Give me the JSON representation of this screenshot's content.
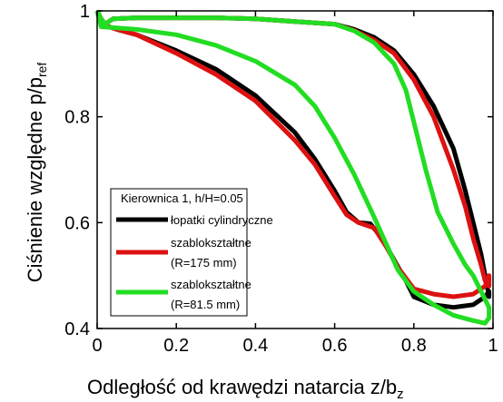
{
  "chart_data": {
    "type": "line",
    "xlabel": "Odległość od krawędzi natarcia z/b",
    "xlabel_sub": "z",
    "ylabel": "Ciśnienie względne p/p",
    "ylabel_sub": "ref",
    "xlim": [
      0,
      1
    ],
    "ylim": [
      0.4,
      1
    ],
    "xticks": [
      0,
      0.2,
      0.4,
      0.6,
      0.8,
      1
    ],
    "xtick_labels": [
      "0",
      "0.2",
      "0.4",
      "0.6",
      "0.8",
      "1"
    ],
    "yticks": [
      0.4,
      0.6,
      0.8,
      1
    ],
    "ytick_labels": [
      "0.4",
      "0.6",
      "0.8",
      "1"
    ],
    "grid": false,
    "legend": {
      "title": "Kierownica 1, h/H=0.05",
      "placement": "center-left",
      "entries": [
        {
          "lines": [
            "łopatki cylindryczne"
          ],
          "color": "#000000"
        },
        {
          "lines": [
            "szablokształtne",
            "(R=175 mm)"
          ],
          "color": "#dd1111"
        },
        {
          "lines": [
            "szablokształtne",
            "(R=81.5 mm)"
          ],
          "color": "#22dd22"
        }
      ]
    },
    "series": [
      {
        "color": "#000000",
        "upper": [
          [
            0,
            1.0
          ],
          [
            0.01,
            0.985
          ],
          [
            0.02,
            0.975
          ],
          [
            0.04,
            0.985
          ],
          [
            0.1,
            0.987
          ],
          [
            0.2,
            0.987
          ],
          [
            0.3,
            0.987
          ],
          [
            0.4,
            0.985
          ],
          [
            0.5,
            0.98
          ],
          [
            0.6,
            0.975
          ],
          [
            0.65,
            0.965
          ],
          [
            0.7,
            0.95
          ],
          [
            0.75,
            0.925
          ],
          [
            0.8,
            0.88
          ],
          [
            0.85,
            0.82
          ],
          [
            0.9,
            0.74
          ],
          [
            0.93,
            0.66
          ],
          [
            0.95,
            0.6
          ],
          [
            0.97,
            0.54
          ],
          [
            0.98,
            0.5
          ],
          [
            0.99,
            0.46
          ]
        ],
        "lower": [
          [
            0,
            1.0
          ],
          [
            0.01,
            0.975
          ],
          [
            0.05,
            0.965
          ],
          [
            0.1,
            0.955
          ],
          [
            0.2,
            0.925
          ],
          [
            0.3,
            0.89
          ],
          [
            0.4,
            0.84
          ],
          [
            0.5,
            0.77
          ],
          [
            0.55,
            0.72
          ],
          [
            0.6,
            0.66
          ],
          [
            0.63,
            0.62
          ],
          [
            0.66,
            0.6
          ],
          [
            0.69,
            0.598
          ],
          [
            0.72,
            0.57
          ],
          [
            0.75,
            0.53
          ],
          [
            0.78,
            0.49
          ],
          [
            0.8,
            0.46
          ],
          [
            0.85,
            0.445
          ],
          [
            0.9,
            0.44
          ],
          [
            0.95,
            0.445
          ],
          [
            0.98,
            0.46
          ],
          [
            0.99,
            0.47
          ]
        ]
      },
      {
        "color": "#dd1111",
        "upper": [
          [
            0,
            1.0
          ],
          [
            0.01,
            0.985
          ],
          [
            0.02,
            0.975
          ],
          [
            0.04,
            0.985
          ],
          [
            0.1,
            0.987
          ],
          [
            0.2,
            0.987
          ],
          [
            0.3,
            0.987
          ],
          [
            0.4,
            0.985
          ],
          [
            0.5,
            0.98
          ],
          [
            0.6,
            0.975
          ],
          [
            0.65,
            0.963
          ],
          [
            0.7,
            0.945
          ],
          [
            0.75,
            0.92
          ],
          [
            0.8,
            0.87
          ],
          [
            0.85,
            0.8
          ],
          [
            0.9,
            0.7
          ],
          [
            0.93,
            0.63
          ],
          [
            0.95,
            0.57
          ],
          [
            0.97,
            0.52
          ],
          [
            0.98,
            0.49
          ],
          [
            0.99,
            0.48
          ]
        ],
        "lower": [
          [
            0,
            1.0
          ],
          [
            0.01,
            0.975
          ],
          [
            0.05,
            0.965
          ],
          [
            0.1,
            0.955
          ],
          [
            0.2,
            0.92
          ],
          [
            0.3,
            0.88
          ],
          [
            0.4,
            0.83
          ],
          [
            0.5,
            0.755
          ],
          [
            0.55,
            0.71
          ],
          [
            0.6,
            0.65
          ],
          [
            0.63,
            0.615
          ],
          [
            0.66,
            0.6
          ],
          [
            0.7,
            0.59
          ],
          [
            0.73,
            0.555
          ],
          [
            0.76,
            0.515
          ],
          [
            0.8,
            0.475
          ],
          [
            0.85,
            0.465
          ],
          [
            0.9,
            0.46
          ],
          [
            0.95,
            0.465
          ],
          [
            0.98,
            0.48
          ],
          [
            0.99,
            0.5
          ]
        ]
      },
      {
        "color": "#22dd22",
        "upper": [
          [
            0,
            1.0
          ],
          [
            0.01,
            0.985
          ],
          [
            0.02,
            0.975
          ],
          [
            0.04,
            0.985
          ],
          [
            0.1,
            0.987
          ],
          [
            0.2,
            0.987
          ],
          [
            0.3,
            0.987
          ],
          [
            0.4,
            0.985
          ],
          [
            0.5,
            0.98
          ],
          [
            0.6,
            0.975
          ],
          [
            0.65,
            0.962
          ],
          [
            0.7,
            0.94
          ],
          [
            0.75,
            0.9
          ],
          [
            0.78,
            0.85
          ],
          [
            0.8,
            0.79
          ],
          [
            0.83,
            0.7
          ],
          [
            0.86,
            0.62
          ],
          [
            0.9,
            0.56
          ],
          [
            0.93,
            0.52
          ],
          [
            0.95,
            0.5
          ],
          [
            0.97,
            0.47
          ],
          [
            0.99,
            0.44
          ]
        ],
        "lower": [
          [
            0,
            1.0
          ],
          [
            0.01,
            0.97
          ],
          [
            0.05,
            0.968
          ],
          [
            0.1,
            0.965
          ],
          [
            0.2,
            0.955
          ],
          [
            0.3,
            0.935
          ],
          [
            0.4,
            0.905
          ],
          [
            0.5,
            0.86
          ],
          [
            0.55,
            0.82
          ],
          [
            0.6,
            0.76
          ],
          [
            0.65,
            0.69
          ],
          [
            0.7,
            0.61
          ],
          [
            0.73,
            0.56
          ],
          [
            0.76,
            0.51
          ],
          [
            0.8,
            0.47
          ],
          [
            0.85,
            0.445
          ],
          [
            0.9,
            0.425
          ],
          [
            0.95,
            0.415
          ],
          [
            0.98,
            0.41
          ],
          [
            0.99,
            0.42
          ]
        ]
      }
    ]
  }
}
